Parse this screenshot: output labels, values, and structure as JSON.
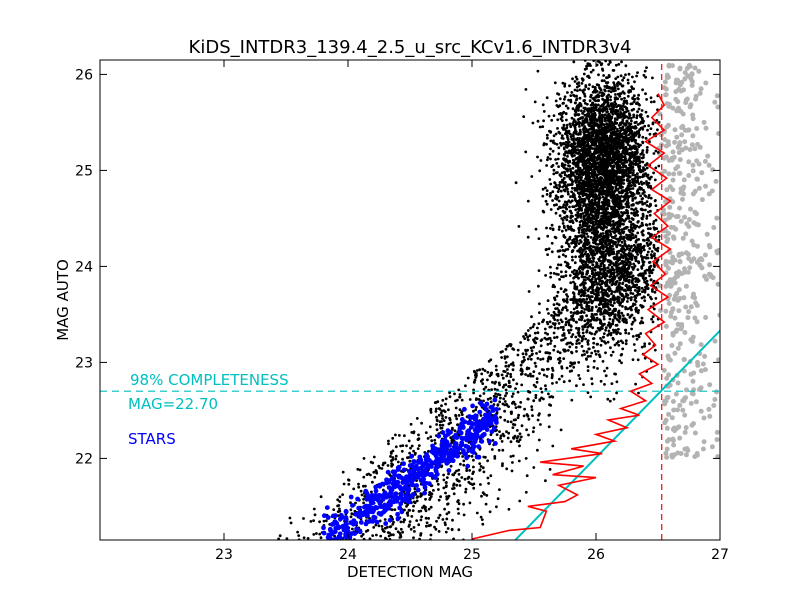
{
  "chart_data": {
    "type": "scatter",
    "title": "KiDS_INTDR3_139.4_2.5_u_src_KCv1.6_INTDR3v4",
    "xlabel": "DETECTION MAG",
    "ylabel": "MAG AUTO",
    "xlim": [
      22.0,
      27.0
    ],
    "ylim": [
      21.15,
      26.15
    ],
    "xticks": [
      "23",
      "24",
      "25",
      "26",
      "27"
    ],
    "xtick_values": [
      23,
      24,
      25,
      26,
      27
    ],
    "yticks": [
      "22",
      "23",
      "24",
      "25",
      "26"
    ],
    "ytick_values": [
      22,
      23,
      24,
      25,
      26
    ],
    "grid": false,
    "colors": {
      "sources": "#000000",
      "rejected": "#b3b3b3",
      "stars": "#0000ff",
      "completeness": "#00bfbf",
      "median": "#ff0000"
    },
    "completeness_level": 22.7,
    "completeness_label": "98% COMPLETENESS",
    "completeness_value_label": "MAG=22.70",
    "stars_label": "STARS",
    "detection_limit": 26.53,
    "cyan_line": [
      [
        25.35,
        21.15
      ],
      [
        27.0,
        23.33
      ]
    ],
    "red_curve": [
      [
        25.0,
        21.16
      ],
      [
        25.3,
        21.25
      ],
      [
        25.55,
        21.28
      ],
      [
        25.6,
        21.45
      ],
      [
        25.45,
        21.5
      ],
      [
        25.75,
        21.55
      ],
      [
        25.85,
        21.62
      ],
      [
        25.7,
        21.72
      ],
      [
        26.0,
        21.8
      ],
      [
        25.65,
        21.83
      ],
      [
        25.9,
        21.92
      ],
      [
        25.55,
        21.96
      ],
      [
        26.05,
        22.05
      ],
      [
        25.8,
        22.1
      ],
      [
        26.15,
        22.18
      ],
      [
        26.0,
        22.25
      ],
      [
        26.25,
        22.32
      ],
      [
        26.1,
        22.4
      ],
      [
        26.35,
        22.45
      ],
      [
        26.2,
        22.52
      ],
      [
        26.4,
        22.6
      ],
      [
        26.28,
        22.7
      ],
      [
        26.45,
        22.78
      ],
      [
        26.35,
        22.88
      ],
      [
        26.5,
        22.98
      ],
      [
        26.38,
        23.08
      ],
      [
        26.48,
        23.18
      ],
      [
        26.4,
        23.3
      ],
      [
        26.55,
        23.42
      ],
      [
        26.42,
        23.55
      ],
      [
        26.58,
        23.68
      ],
      [
        26.44,
        23.8
      ],
      [
        26.56,
        23.92
      ],
      [
        26.46,
        24.05
      ],
      [
        26.6,
        24.18
      ],
      [
        26.45,
        24.3
      ],
      [
        26.58,
        24.42
      ],
      [
        26.47,
        24.55
      ],
      [
        26.6,
        24.68
      ],
      [
        26.45,
        24.8
      ],
      [
        26.57,
        24.92
      ],
      [
        26.42,
        25.05
      ],
      [
        26.55,
        25.18
      ],
      [
        26.4,
        25.3
      ],
      [
        26.55,
        25.42
      ],
      [
        26.45,
        25.55
      ],
      [
        26.55,
        25.68
      ],
      [
        26.5,
        25.8
      ]
    ]
  }
}
